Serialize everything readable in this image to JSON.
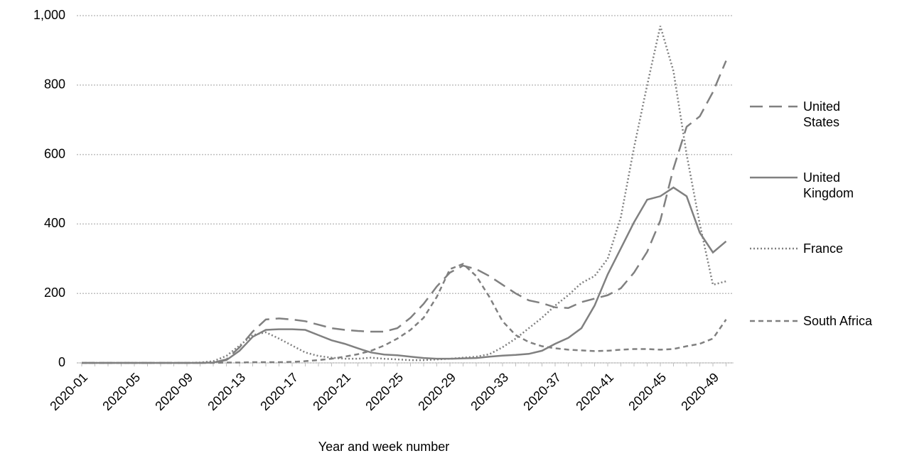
{
  "chart_data": {
    "type": "line",
    "x_label": "Year and week number",
    "categories": [
      "2020-01",
      null,
      null,
      null,
      "2020-05",
      null,
      null,
      null,
      "2020-09",
      null,
      null,
      null,
      "2020-13",
      null,
      null,
      null,
      "2020-17",
      null,
      null,
      null,
      "2020-21",
      null,
      null,
      null,
      "2020-25",
      null,
      null,
      null,
      "2020-29",
      null,
      null,
      null,
      "2020-33",
      null,
      null,
      null,
      "2020-37",
      null,
      null,
      null,
      "2020-41",
      null,
      null,
      null,
      "2020-45",
      null,
      null,
      null,
      "2020-49",
      null
    ],
    "series": [
      {
        "name": "United States",
        "color": "#808080",
        "dash": "long-dash",
        "values": [
          0,
          0,
          0,
          0,
          0,
          0,
          0,
          0,
          0,
          0,
          1,
          10,
          45,
          90,
          125,
          128,
          125,
          120,
          110,
          100,
          95,
          92,
          90,
          90,
          100,
          130,
          170,
          220,
          260,
          280,
          270,
          250,
          225,
          200,
          180,
          172,
          160,
          158,
          175,
          185,
          195,
          215,
          260,
          320,
          410,
          560,
          680,
          710,
          780,
          870
        ]
      },
      {
        "name": "United Kingdom",
        "color": "#808080",
        "dash": "solid",
        "values": [
          0,
          0,
          0,
          0,
          0,
          0,
          0,
          0,
          0,
          0,
          1,
          8,
          35,
          75,
          95,
          97,
          97,
          95,
          80,
          65,
          55,
          42,
          30,
          24,
          22,
          18,
          14,
          12,
          12,
          13,
          14,
          18,
          21,
          23,
          26,
          35,
          55,
          72,
          100,
          165,
          255,
          330,
          405,
          470,
          480,
          505,
          480,
          375,
          318,
          350
        ]
      },
      {
        "name": "France",
        "color": "#808080",
        "dash": "dotted",
        "values": [
          0,
          0,
          0,
          0,
          0,
          0,
          0,
          0,
          0,
          1,
          5,
          20,
          50,
          80,
          88,
          70,
          50,
          30,
          20,
          15,
          12,
          12,
          15,
          12,
          10,
          8,
          8,
          10,
          12,
          15,
          18,
          25,
          45,
          70,
          100,
          130,
          165,
          195,
          230,
          250,
          300,
          420,
          620,
          800,
          970,
          840,
          600,
          400,
          225,
          235
        ]
      },
      {
        "name": "South Africa",
        "color": "#808080",
        "dash": "short-dash",
        "values": [
          0,
          0,
          0,
          0,
          0,
          0,
          0,
          0,
          0,
          0,
          0,
          1,
          1,
          2,
          2,
          2,
          3,
          5,
          8,
          12,
          18,
          25,
          35,
          50,
          70,
          95,
          130,
          190,
          270,
          285,
          250,
          190,
          120,
          80,
          60,
          48,
          42,
          38,
          36,
          34,
          35,
          38,
          40,
          40,
          38,
          40,
          48,
          55,
          70,
          125
        ]
      }
    ],
    "ylim": [
      0,
      1000
    ],
    "yticks": [
      0,
      200,
      400,
      600,
      800,
      {
        "value": 1000,
        "label": "1,000"
      }
    ],
    "grid": true
  }
}
